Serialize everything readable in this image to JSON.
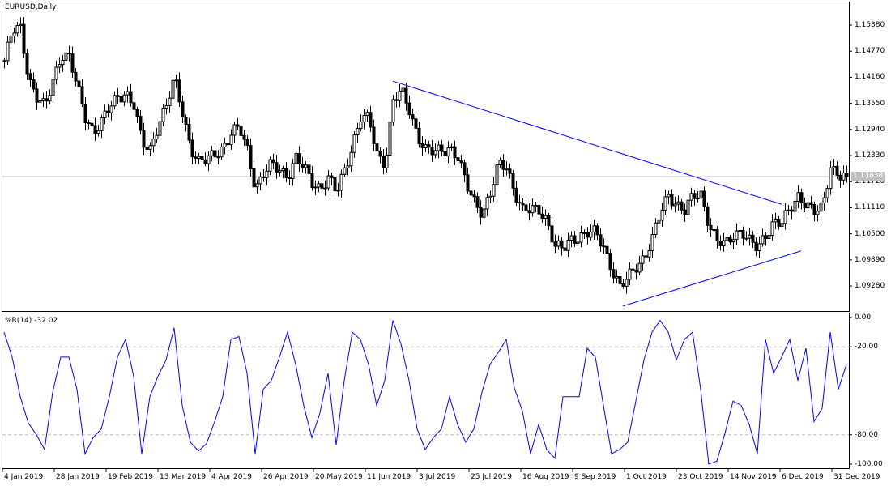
{
  "window": {
    "title": "EURUSD,Daily"
  },
  "colors": {
    "background": "#ffffff",
    "candles": "#000000",
    "trendlines": "#0000ff",
    "indicator_line": "#0000ff",
    "level_lines": "#c0c0c0",
    "current_price_badge": "#c0c0c0"
  },
  "price_axis": {
    "ticks": [
      "1.15380",
      "1.14770",
      "1.14160",
      "1.13550",
      "1.12940",
      "1.12330",
      "1.11720",
      "1.11110",
      "1.10500",
      "1.09890",
      "1.09280"
    ],
    "current_price": "1.11838"
  },
  "indicator": {
    "label": "%R(14) -32.02",
    "ticks": [
      "0.00",
      "-20.00",
      "-80.00",
      "-100.00"
    ],
    "levels": [
      -20,
      -80
    ]
  },
  "time_axis": {
    "labels": [
      "4 Jan 2019",
      "28 Jan 2019",
      "19 Feb 2019",
      "13 Mar 2019",
      "4 Apr 2019",
      "26 Apr 2019",
      "20 May 2019",
      "11 Jun 2019",
      "3 Jul 2019",
      "25 Jul 2019",
      "16 Aug 2019",
      "9 Sep 2019",
      "1 Oct 2019",
      "23 Oct 2019",
      "14 Nov 2019",
      "6 Dec 2019",
      "31 Dec 2019"
    ]
  },
  "chart_data": [
    {
      "type": "candlestick",
      "symbol": "EURUSD",
      "timeframe": "Daily",
      "x_range": [
        "2019-01-02",
        "2020-01-03"
      ],
      "ylim": [
        1.0869,
        1.1593
      ],
      "close_samples": [
        1.1455,
        1.1521,
        1.153,
        1.1417,
        1.1369,
        1.1341,
        1.1407,
        1.1474,
        1.1464,
        1.1388,
        1.1322,
        1.1294,
        1.1313,
        1.1341,
        1.1369,
        1.1385,
        1.1351,
        1.1256,
        1.1246,
        1.1313,
        1.1351,
        1.1407,
        1.1332,
        1.1256,
        1.1218,
        1.1218,
        1.1237,
        1.1256,
        1.1284,
        1.1294,
        1.1246,
        1.1161,
        1.119,
        1.1208,
        1.1199,
        1.119,
        1.1227,
        1.1199,
        1.1171,
        1.1161,
        1.118,
        1.1142,
        1.1199,
        1.1265,
        1.1322,
        1.1313,
        1.1237,
        1.1218,
        1.136,
        1.1379,
        1.1341,
        1.1284,
        1.1246,
        1.1237,
        1.1246,
        1.1256,
        1.1227,
        1.1161,
        1.1127,
        1.1104,
        1.1142,
        1.1208,
        1.1208,
        1.1152,
        1.1104,
        1.1101,
        1.1108,
        1.1085,
        1.1019,
        1.101,
        1.1038,
        1.1048,
        1.1051,
        1.1048,
        1.1019,
        1.0972,
        1.0924,
        1.0943,
        1.0975,
        1.1,
        1.1038,
        1.1095,
        1.1142,
        1.1123,
        1.1104,
        1.1133,
        1.1142,
        1.1076,
        1.1032,
        1.1019,
        1.1048,
        1.1063,
        1.1032,
        1.101,
        1.1048,
        1.1085,
        1.1076,
        1.1101,
        1.1138,
        1.1127,
        1.1101,
        1.1104,
        1.1208,
        1.1195,
        1.1184
      ],
      "trendlines": [
        {
          "from": {
            "date": "2019-06-21",
            "price": 1.1407
          },
          "to": {
            "date": "2019-12-06",
            "price": 1.1119
          }
        },
        {
          "from": {
            "date": "2019-09-30",
            "price": 1.0881
          },
          "to": {
            "date": "2019-12-16",
            "price": 1.101
          }
        }
      ],
      "current_price_line": 1.11838
    },
    {
      "type": "line",
      "name": "%R(14)",
      "ylim": [
        -100,
        0
      ],
      "values": [
        -10,
        -27,
        -54,
        -72,
        -80,
        -90,
        -51,
        -27,
        -27,
        -49,
        -93,
        -82,
        -76,
        -54,
        -27,
        -15,
        -40,
        -93,
        -54,
        -40,
        -29,
        -7,
        -60,
        -85,
        -91,
        -86,
        -71,
        -54,
        -15,
        -13,
        -38,
        -93,
        -49,
        -43,
        -27,
        -10,
        -32,
        -60,
        -82,
        -65,
        -38,
        -87,
        -43,
        -10,
        -15,
        -32,
        -60,
        -43,
        -2,
        -18,
        -43,
        -76,
        -90,
        -82,
        -76,
        -54,
        -73,
        -85,
        -76,
        -51,
        -32,
        -24,
        -15,
        -48,
        -64,
        -93,
        -73,
        -90,
        -96,
        -54,
        -54,
        -54,
        -21,
        -27,
        -60,
        -93,
        -90,
        -85,
        -57,
        -29,
        -10,
        -2,
        -10,
        -29,
        -15,
        -10,
        -49,
        -100,
        -98,
        -79,
        -57,
        -60,
        -73,
        -93,
        -15,
        -38,
        -27,
        -15,
        -43,
        -21,
        -71,
        -62,
        -10,
        -49,
        -32.02
      ]
    }
  ]
}
